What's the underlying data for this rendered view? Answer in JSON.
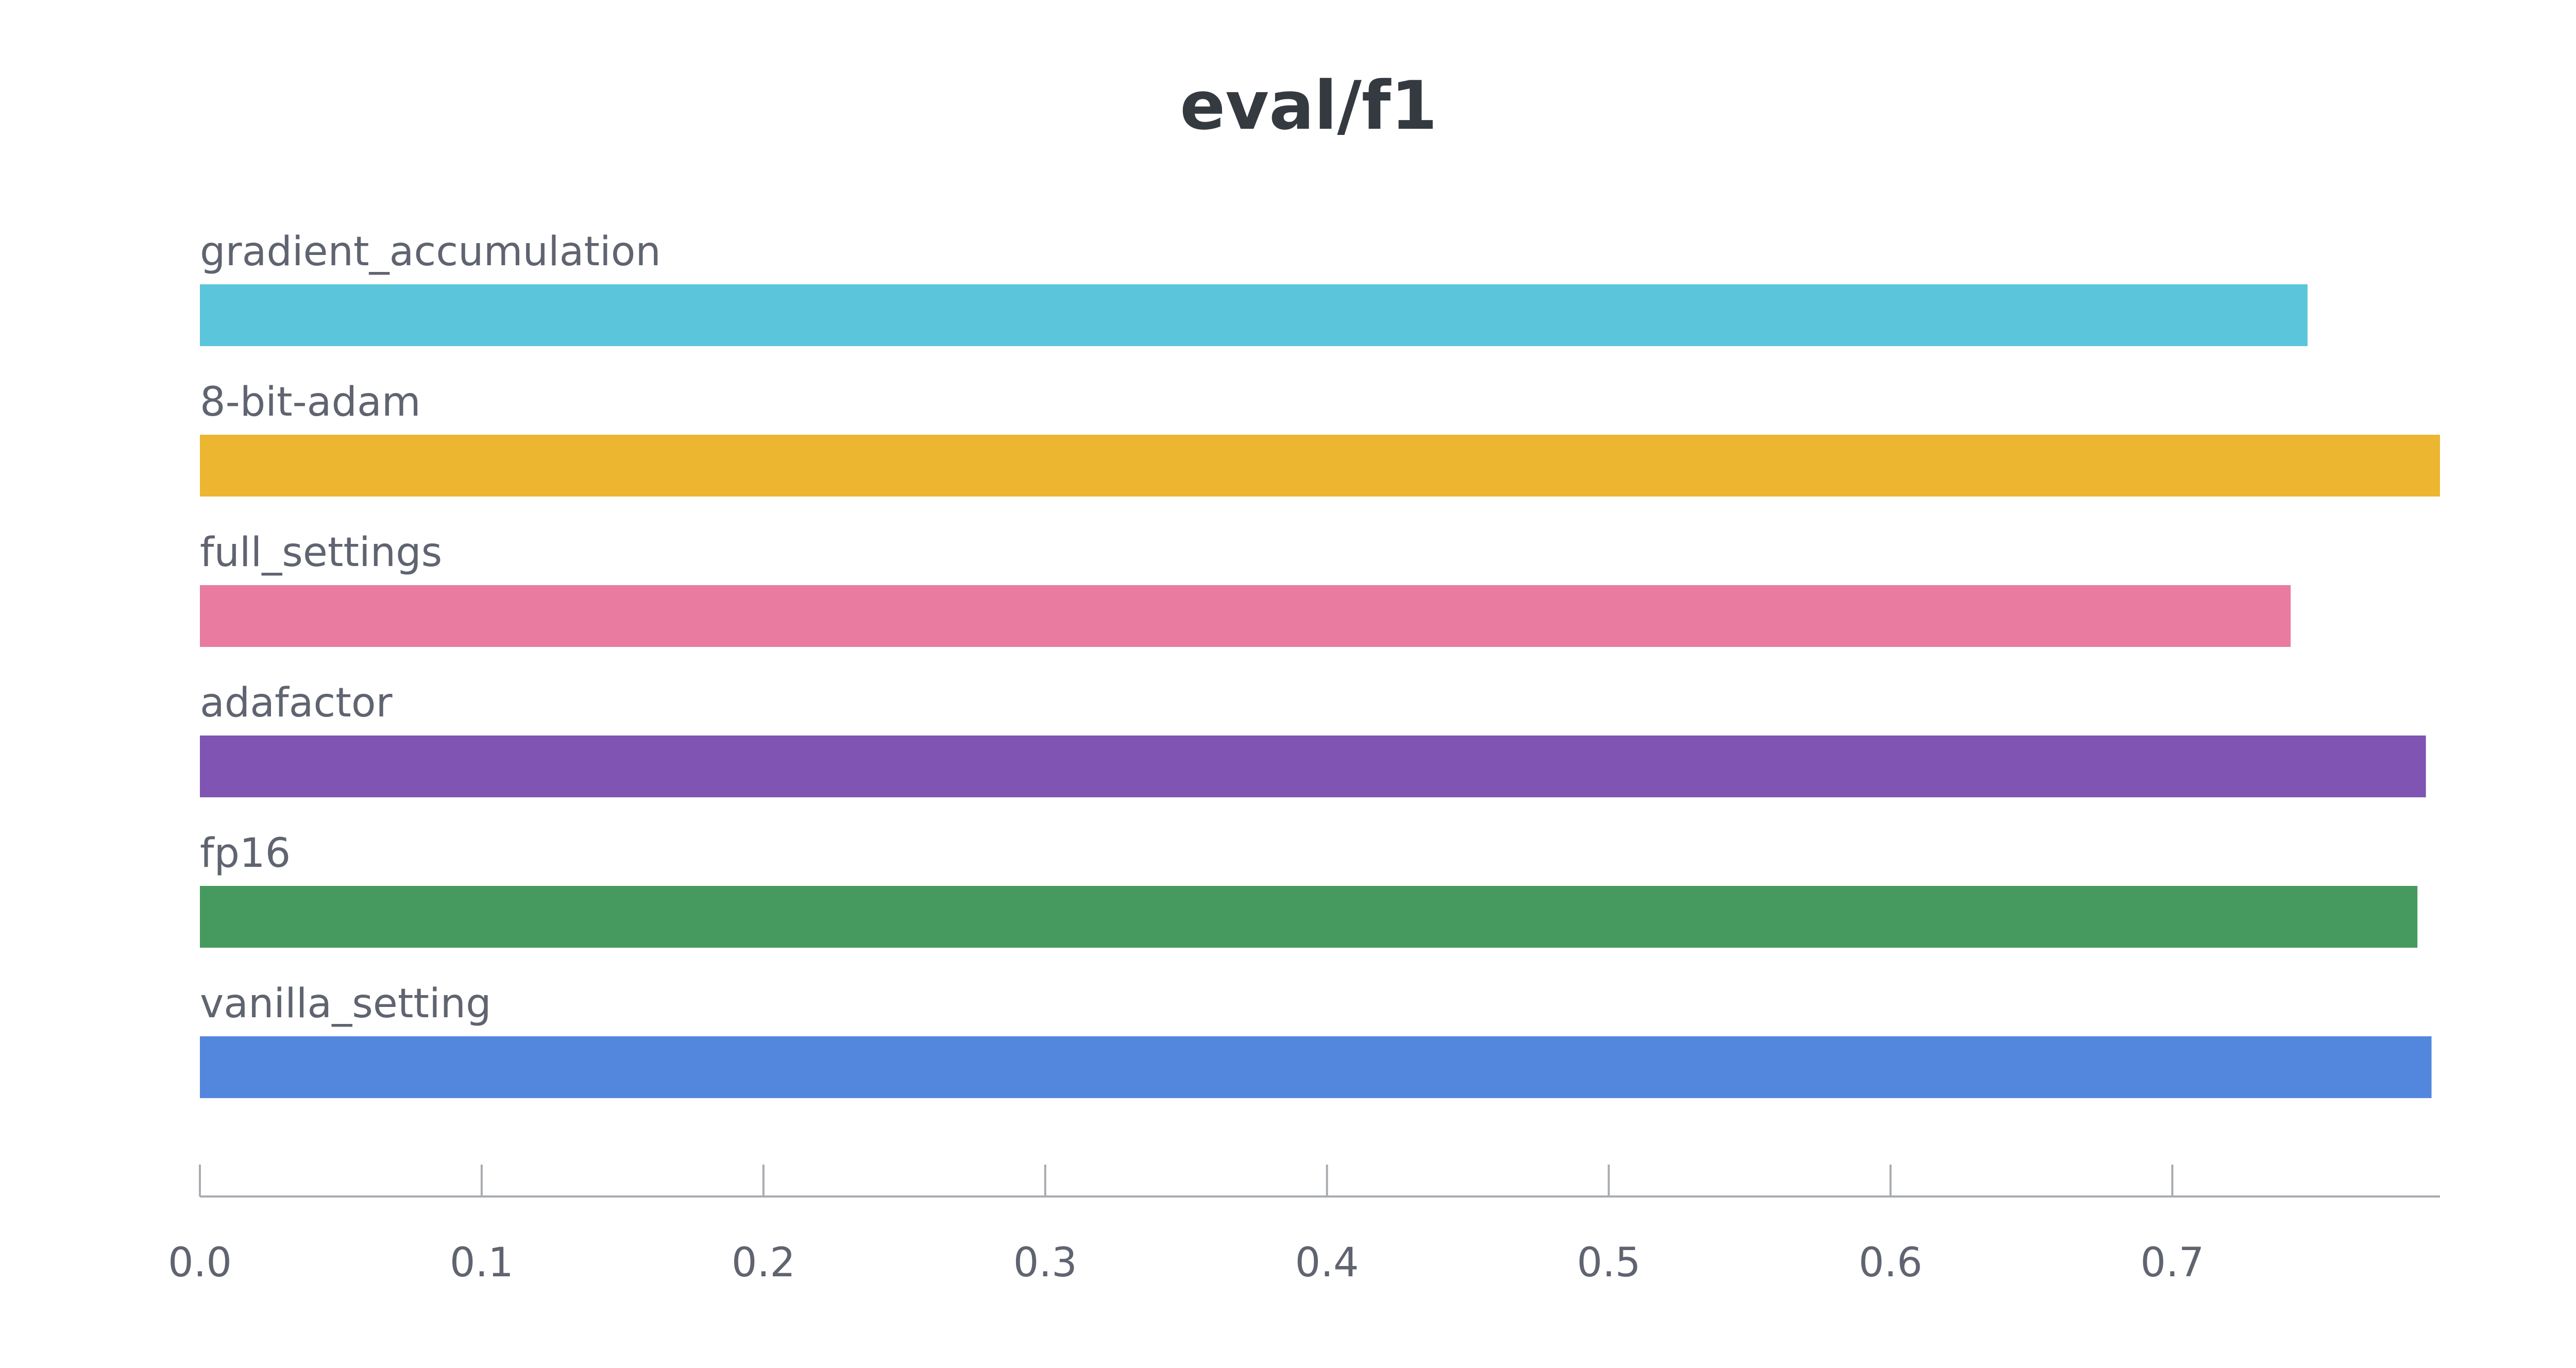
{
  "chart_data": {
    "type": "bar",
    "orientation": "horizontal",
    "title": "eval/f1",
    "xlabel": "",
    "ylabel": "",
    "xlim": [
      0,
      0.795
    ],
    "xticks": [
      "0.0",
      "0.1",
      "0.2",
      "0.3",
      "0.4",
      "0.5",
      "0.6",
      "0.7"
    ],
    "grid": false,
    "legend": "none",
    "categories": [
      "gradient_accumulation",
      "8-bit-adam",
      "full_settings",
      "adafactor",
      "fp16",
      "vanilla_setting"
    ],
    "values": [
      0.748,
      0.795,
      0.742,
      0.79,
      0.787,
      0.792
    ],
    "colors": [
      "#5bc5db",
      "#ecb631",
      "#e87b9f",
      "#7f54b3",
      "#479a5f",
      "#5387dd"
    ]
  }
}
